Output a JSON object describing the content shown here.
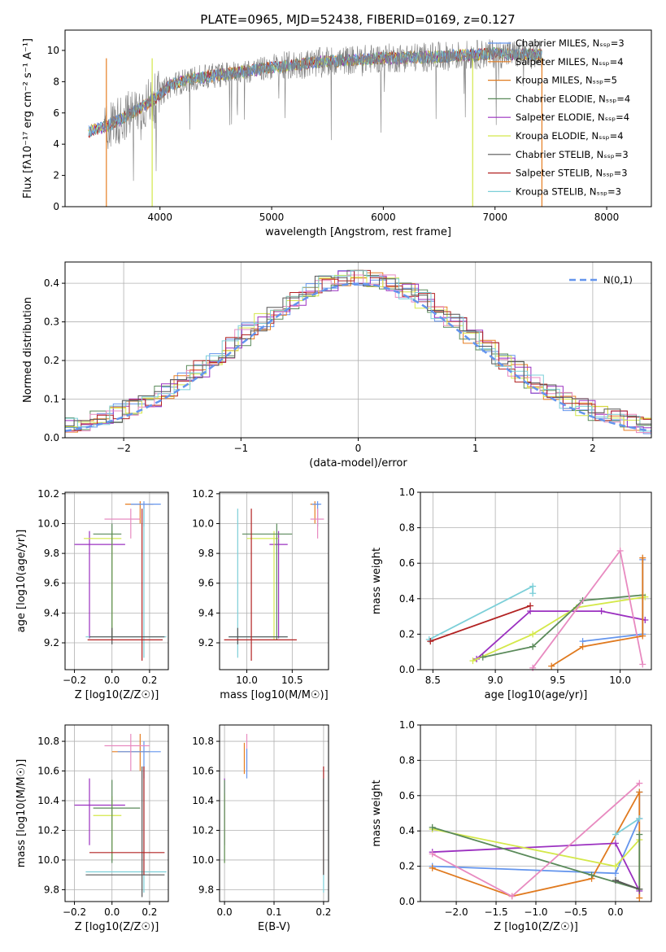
{
  "title": "PLATE=0965, MJD=52438, FIBERID=0169, z=0.127",
  "colors": [
    "#6495ED",
    "#E67E22",
    "#E07A1F",
    "#5A8A5A",
    "#9B30C0",
    "#D4E84A",
    "#555555",
    "#B22222",
    "#7CCFD8",
    "#E88AC0"
  ],
  "chart_data": [
    {
      "id": "spectrum",
      "type": "line",
      "xlabel": "wavelength [Angstrom, rest frame]",
      "ylabel": "Flux [fλ10⁻¹⁷ erg cm⁻² s⁻¹ A⁻¹]",
      "xlim": [
        3150,
        8400
      ],
      "ylim": [
        0,
        11.3
      ],
      "xticks": [
        4000,
        5000,
        6000,
        7000,
        8000
      ],
      "yticks": [
        0,
        2,
        4,
        6,
        8,
        10
      ],
      "legend_position": "top-right",
      "legend": [
        "Chabrier MILES, N_SSP=3",
        "Salpeter MILES, N_SSP=4",
        "Kroupa MILES, N_SSP=5",
        "Chabrier ELODIE, N_SSP=4",
        "Salpeter ELODIE, N_SSP=4",
        "Kroupa ELODIE, N_SSP=4",
        "Chabrier STELIB, N_SSP=3",
        "Salpeter STELIB, N_SSP=3",
        "Kroupa STELIB, N_SSP=3"
      ],
      "approx_continuum": {
        "x": [
          3350,
          3500,
          3650,
          3800,
          3950,
          4100,
          4300,
          4600,
          5000,
          5500,
          6000,
          6500,
          7000,
          7400
        ],
        "y": [
          4.8,
          5.1,
          5.6,
          6.2,
          6.9,
          7.8,
          8.2,
          8.5,
          8.9,
          9.3,
          9.5,
          9.6,
          9.8,
          9.7
        ]
      },
      "grid": false
    },
    {
      "id": "residuals",
      "type": "line",
      "xlabel": "(data-model)/error",
      "ylabel": "Normed distribution",
      "xlim": [
        -2.5,
        2.5
      ],
      "ylim": [
        0,
        0.455
      ],
      "xticks": [
        -2,
        -1,
        0,
        1,
        2
      ],
      "yticks": [
        0.0,
        0.1,
        0.2,
        0.3,
        0.4
      ],
      "legend": [
        "N(0,1)"
      ],
      "legend_position": "top-right",
      "grid": true
    },
    {
      "id": "age_vs_Z",
      "type": "scatter",
      "xlabel": "Z [log10(Z/Z☉)]",
      "ylabel": "age  [log10(age/yr)]",
      "xlim": [
        -0.25,
        0.3
      ],
      "ylim": [
        9.02,
        10.21
      ],
      "xticks": [
        -0.2,
        0.0,
        0.2
      ],
      "yticks": [
        9.2,
        9.4,
        9.6,
        9.8,
        10.0,
        10.2
      ],
      "grid": true
    },
    {
      "id": "age_vs_mass",
      "type": "scatter",
      "xlabel": "mass [log10(M/M☉)]",
      "xlim": [
        9.7,
        10.9
      ],
      "ylim": [
        9.02,
        10.21
      ],
      "xticks": [
        10.0,
        10.5
      ],
      "yticks": [
        9.2,
        9.4,
        9.6,
        9.8,
        10.0,
        10.2
      ],
      "grid": true
    },
    {
      "id": "weight_vs_age",
      "type": "line",
      "xlabel": "age  [log10(age/yr)]",
      "ylabel": "mass weight",
      "xlim": [
        8.4,
        10.25
      ],
      "ylim": [
        0,
        1.0
      ],
      "xticks": [
        8.5,
        9.0,
        9.5,
        10.0
      ],
      "yticks": [
        0.0,
        0.2,
        0.4,
        0.6,
        0.8,
        1.0
      ],
      "series": [
        {
          "color": "#6495ED",
          "x": [
            9.7,
            10.18,
            10.18
          ],
          "y": [
            0.16,
            0.2,
            0.62
          ]
        },
        {
          "color": "#7CCFD8",
          "x": [
            8.47,
            9.3,
            9.3
          ],
          "y": [
            0.17,
            0.47,
            0.43
          ]
        },
        {
          "color": "#9B30C0",
          "x": [
            8.85,
            9.28,
            9.85,
            10.2
          ],
          "y": [
            0.06,
            0.33,
            0.33,
            0.28
          ]
        },
        {
          "color": "#D4E84A",
          "x": [
            8.82,
            9.3,
            9.65,
            10.2
          ],
          "y": [
            0.05,
            0.2,
            0.35,
            0.41
          ]
        },
        {
          "color": "#5A8A5A",
          "x": [
            8.9,
            9.3,
            9.7,
            10.18
          ],
          "y": [
            0.07,
            0.13,
            0.39,
            0.42
          ]
        },
        {
          "color": "#B22222",
          "x": [
            8.48,
            9.28
          ],
          "y": [
            0.16,
            0.36
          ]
        },
        {
          "color": "#E88AC0",
          "x": [
            9.3,
            10.0,
            10.18
          ],
          "y": [
            0.01,
            0.67,
            0.03
          ]
        },
        {
          "color": "#E07A1F",
          "x": [
            9.45,
            9.7,
            10.18,
            10.18
          ],
          "y": [
            0.02,
            0.13,
            0.19,
            0.63
          ]
        }
      ],
      "grid": true
    },
    {
      "id": "mass_vs_Z",
      "type": "scatter",
      "xlabel": "Z [log10(Z/Z☉)]",
      "ylabel": "mass [log10(M/M☉)]",
      "xlim": [
        -0.25,
        0.3
      ],
      "ylim": [
        9.72,
        10.91
      ],
      "xticks": [
        -0.2,
        0.0,
        0.2
      ],
      "yticks": [
        9.8,
        10.0,
        10.2,
        10.4,
        10.6,
        10.8
      ],
      "grid": true
    },
    {
      "id": "mass_vs_ebv",
      "type": "scatter",
      "xlabel": "E(B-V)",
      "xlim": [
        -0.01,
        0.21
      ],
      "ylim": [
        9.72,
        10.91
      ],
      "xticks": [
        0.0,
        0.1,
        0.2
      ],
      "yticks": [
        9.8,
        10.0,
        10.2,
        10.4,
        10.6,
        10.8
      ],
      "grid": true
    },
    {
      "id": "weight_vs_Z",
      "type": "line",
      "xlabel": "Z [log10(Z/Z☉)]",
      "ylabel": "mass weight",
      "xlim": [
        -2.45,
        0.45
      ],
      "ylim": [
        0,
        1.0
      ],
      "xticks": [
        -2.0,
        -1.5,
        -1.0,
        -0.5,
        0.0
      ],
      "yticks": [
        0.0,
        0.2,
        0.4,
        0.6,
        0.8,
        1.0
      ],
      "series": [
        {
          "color": "#6495ED",
          "x": [
            -2.3,
            0.0,
            0.3,
            0.3
          ],
          "y": [
            0.2,
            0.16,
            0.47,
            0.62
          ]
        },
        {
          "color": "#E07A1F",
          "x": [
            -2.3,
            -1.3,
            -0.3,
            0.3,
            0.3
          ],
          "y": [
            0.19,
            0.03,
            0.13,
            0.62,
            0.02
          ]
        },
        {
          "color": "#9B30C0",
          "x": [
            -2.3,
            0.0,
            0.3
          ],
          "y": [
            0.28,
            0.33,
            0.06
          ]
        },
        {
          "color": "#D4E84A",
          "x": [
            -2.3,
            0.0,
            0.3
          ],
          "y": [
            0.41,
            0.2,
            0.35
          ]
        },
        {
          "color": "#5A8A5A",
          "x": [
            -2.3,
            -0.3,
            0.3,
            0.3
          ],
          "y": [
            0.42,
            0.15,
            0.07,
            0.38
          ]
        },
        {
          "color": "#E88AC0",
          "x": [
            -2.3,
            -1.3,
            0.3
          ],
          "y": [
            0.27,
            0.03,
            0.67
          ]
        },
        {
          "color": "#7CCFD8",
          "x": [
            0.0,
            0.3
          ],
          "y": [
            0.38,
            0.47
          ]
        },
        {
          "color": "#555555",
          "x": [
            0.0,
            0.3
          ],
          "y": [
            0.12,
            0.07
          ]
        }
      ],
      "grid": true
    }
  ]
}
